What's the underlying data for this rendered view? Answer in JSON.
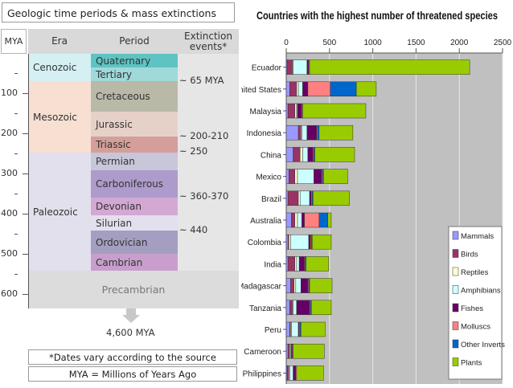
{
  "geologic": {
    "title": "Geologic time periods & mass extinctions",
    "headers": {
      "mya": "MYA",
      "era": "Era",
      "period": "Period",
      "extinction": "Extinction events*"
    },
    "eras": [
      "Cenozoic",
      "Mesozoic",
      "Paleozoic"
    ],
    "periods": {
      "quaternary": "Quaternary",
      "tertiary": "Tertiary",
      "cretaceous": "Cretaceous",
      "jurassic": "Jurassic",
      "triassic": "Triassic",
      "permian": "Permian",
      "carboniferous": "Carboniferous",
      "devonian": "Devonian",
      "silurian": "Silurian",
      "ordovician": "Ordovician",
      "cambrian": "Cambrian",
      "precambrian": "Precambrian"
    },
    "extinctions": [
      "~ 65 MYA",
      "~ 200-210",
      "~ 250",
      "~ 360-370",
      "~ 440"
    ],
    "mya_ticks": [
      "100",
      "200",
      "300",
      "400",
      "500",
      "600"
    ],
    "bottom_label": "4,600 MYA",
    "note1": "*Dates vary according to the source",
    "note2": "MYA = Millions of Years Ago"
  },
  "chart_data": {
    "type": "bar",
    "title": "Countries with the highest number of threatened species",
    "xlim": [
      0,
      2500
    ],
    "xticks": [
      "0",
      "500",
      "1000",
      "1500",
      "2000",
      "2500"
    ],
    "legend_position": "bottom-right",
    "series": [
      {
        "name": "Mammals",
        "color": "#9999ff",
        "values": [
          10,
          40,
          20,
          140,
          80,
          30,
          20,
          60,
          20,
          20,
          50,
          40,
          40,
          20,
          10
        ]
      },
      {
        "name": "Birds",
        "color": "#993366",
        "values": [
          60,
          80,
          80,
          30,
          80,
          70,
          120,
          40,
          10,
          80,
          40,
          30,
          10,
          20,
          20
        ]
      },
      {
        "name": "Reptiles",
        "color": "#ffffcc",
        "values": [
          10,
          20,
          20,
          10,
          30,
          30,
          20,
          30,
          20,
          20,
          20,
          10,
          10,
          10,
          10
        ]
      },
      {
        "name": "Amphibians",
        "color": "#ccffff",
        "values": [
          160,
          50,
          10,
          60,
          60,
          190,
          110,
          50,
          210,
          30,
          60,
          40,
          80,
          10,
          40
        ]
      },
      {
        "name": "Fishes",
        "color": "#660066",
        "values": [
          20,
          60,
          50,
          110,
          60,
          90,
          20,
          30,
          20,
          60,
          80,
          150,
          10,
          10,
          30
        ]
      },
      {
        "name": "Molluscs",
        "color": "#ff8080",
        "values": [
          10,
          260,
          10,
          10,
          10,
          10,
          10,
          170,
          10,
          10,
          10,
          10,
          10,
          10,
          10
        ]
      },
      {
        "name": "Other Inverts",
        "color": "#0066cc",
        "values": [
          0,
          300,
          0,
          20,
          10,
          10,
          10,
          100,
          10,
          10,
          10,
          10,
          10,
          0,
          0
        ]
      },
      {
        "name": "Plants",
        "color": "#99cc00",
        "values": [
          1850,
          230,
          730,
          390,
          460,
          280,
          420,
          40,
          220,
          260,
          260,
          230,
          280,
          360,
          310
        ]
      }
    ],
    "categories": [
      "Ecuador",
      "United States",
      "Malaysia",
      "Indonesia",
      "China",
      "Mexico",
      "Brazil",
      "Australia",
      "Colombia",
      "India",
      "Madagascar",
      "Tanzania",
      "Peru",
      "Cameroon",
      "Philippines"
    ]
  }
}
